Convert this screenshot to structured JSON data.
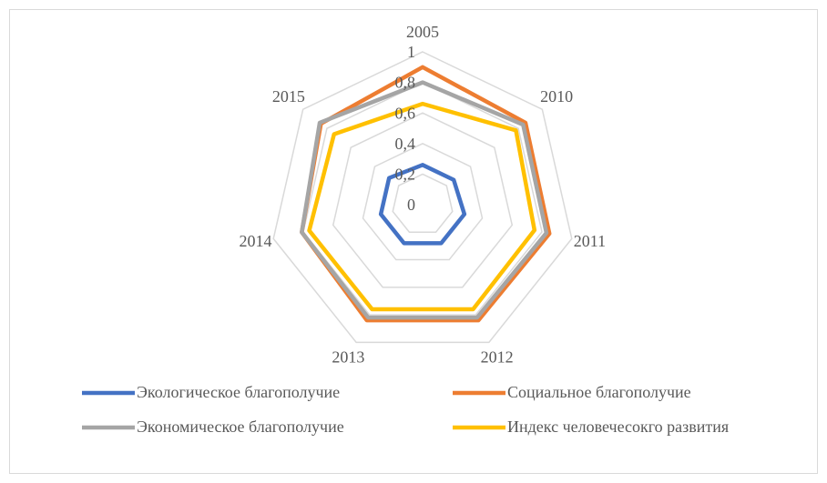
{
  "chart_data": {
    "type": "radar",
    "categories": [
      "2005",
      "2010",
      "2011",
      "2012",
      "2013",
      "2014",
      "2015"
    ],
    "series": [
      {
        "name": "Экологическое благополучие",
        "color": "#4472c4",
        "values": [
          0.26,
          0.26,
          0.28,
          0.28,
          0.28,
          0.28,
          0.28
        ]
      },
      {
        "name": "Социальное благополучие",
        "color": "#ed7d31",
        "values": [
          0.9,
          0.86,
          0.85,
          0.84,
          0.84,
          0.81,
          0.85
        ]
      },
      {
        "name": "Экономическое благополучие",
        "color": "#a5a5a5",
        "values": [
          0.8,
          0.84,
          0.83,
          0.82,
          0.82,
          0.81,
          0.86
        ]
      },
      {
        "name": "Индекс человечесокго развития",
        "color": "#ffc000",
        "values": [
          0.66,
          0.78,
          0.75,
          0.76,
          0.76,
          0.76,
          0.74
        ]
      }
    ],
    "ylim": [
      0,
      1
    ],
    "yticks": [
      0,
      {
        "value": 0.2,
        "label": "0,2"
      },
      {
        "value": 0.4,
        "label": "0,4"
      },
      {
        "value": 0.6,
        "label": "0,6"
      },
      {
        "value": 0.8,
        "label": "0,8"
      },
      1
    ],
    "grid": true,
    "legend": "bottom"
  }
}
